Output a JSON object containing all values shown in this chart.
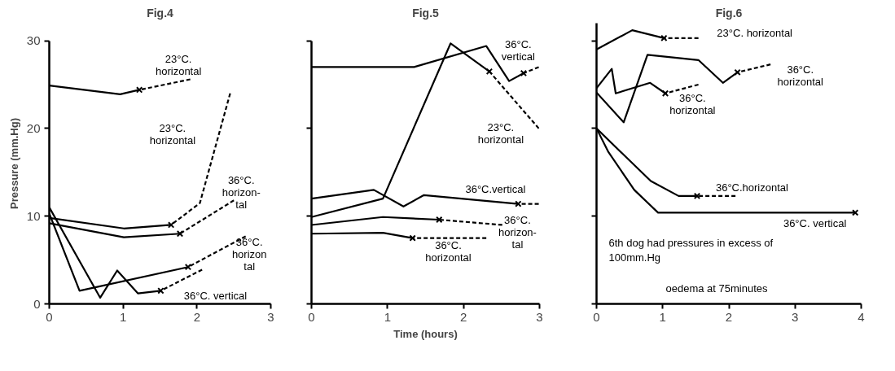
{
  "chart_data": [
    {
      "type": "line",
      "title": "Fig.4",
      "ylabel": "Pressure (mm.Hg)",
      "xlim": [
        0,
        3
      ],
      "xticks": [
        0,
        1,
        2,
        3
      ],
      "ylim": [
        0,
        30
      ],
      "yticks": [
        0,
        10,
        20,
        30
      ],
      "grid": false,
      "legend": false,
      "series": [
        {
          "color": "#000000",
          "line_style": "solid",
          "x": [
            0,
            0.96,
            1.22
          ],
          "values": [
            24.9,
            23.9,
            24.4
          ]
        },
        {
          "name": "23°C.\nhorizontal",
          "color": "#000000",
          "line_style": "dashed",
          "x": [
            1.22,
            1.91
          ],
          "values": [
            24.4,
            25.6
          ]
        },
        {
          "color": "#000000",
          "line_style": "solid",
          "x": [
            0,
            1.01,
            1.65
          ],
          "values": [
            9.8,
            8.6,
            9.0
          ]
        },
        {
          "name": "23°C.\nhorizontal",
          "color": "#000000",
          "line_style": "dashed",
          "x": [
            1.65,
            2.04,
            2.45
          ],
          "values": [
            9.0,
            11.5,
            24.0
          ]
        },
        {
          "color": "#000000",
          "line_style": "solid",
          "x": [
            0,
            1.01,
            1.77
          ],
          "values": [
            9.2,
            7.6,
            8.0
          ]
        },
        {
          "name": "36°C.\nhorizon-\ntal",
          "color": "#000000",
          "line_style": "dashed",
          "x": [
            1.77,
            2.5
          ],
          "values": [
            8.0,
            11.8
          ]
        },
        {
          "color": "#000000",
          "line_style": "solid",
          "x": [
            0,
            0.41,
            1.88
          ],
          "values": [
            10.3,
            1.5,
            4.2
          ]
        },
        {
          "name": "36°C.\nhorizon\ntal",
          "color": "#000000",
          "line_style": "dashed",
          "x": [
            1.88,
            2.66
          ],
          "values": [
            4.2,
            7.7
          ]
        },
        {
          "color": "#000000",
          "line_style": "solid",
          "x": [
            0,
            0.69,
            0.92,
            1.2,
            1.51
          ],
          "values": [
            11.0,
            0.7,
            3.8,
            1.2,
            1.5
          ]
        },
        {
          "name": "36°C. vertical",
          "color": "#000000",
          "line_style": "dashed",
          "x": [
            1.51,
            2.07
          ],
          "values": [
            1.5,
            3.9
          ]
        },
        {
          "type": "scatter",
          "marker": "cross",
          "color": "#000000",
          "x": [
            1.22,
            1.65,
            1.77,
            1.88,
            1.51
          ],
          "values": [
            24.4,
            9.0,
            8.0,
            4.2,
            1.5
          ]
        }
      ]
    },
    {
      "type": "line",
      "title": "Fig.5",
      "xlabel": "Time (hours)",
      "xlim": [
        0,
        3
      ],
      "xticks": [
        0,
        1,
        2,
        3
      ],
      "ylim": [
        0,
        30
      ],
      "yticks": [
        0,
        10,
        20,
        30
      ],
      "tick_labels": "x",
      "grid": false,
      "legend": false,
      "series": [
        {
          "color": "#000000",
          "line_style": "solid",
          "x": [
            0,
            1.35,
            2.3,
            2.6,
            2.79
          ],
          "values": [
            27.0,
            27.0,
            29.4,
            25.4,
            26.3
          ]
        },
        {
          "name": "36°C.\nvertical",
          "color": "#000000",
          "line_style": "dashed",
          "x": [
            2.79,
            2.99
          ],
          "values": [
            26.3,
            27.0
          ]
        },
        {
          "color": "#000000",
          "line_style": "solid",
          "x": [
            0,
            0.94,
            1.83,
            2.34
          ],
          "values": [
            9.9,
            12.0,
            29.7,
            26.5
          ]
        },
        {
          "name": "23°C.\nhorizontal",
          "color": "#000000",
          "line_style": "dashed",
          "x": [
            2.34,
            2.99
          ],
          "values": [
            26.5,
            20.0
          ]
        },
        {
          "color": "#000000",
          "line_style": "solid",
          "x": [
            0,
            0.82,
            1.21,
            1.48,
            2.72
          ],
          "values": [
            12.0,
            13.0,
            11.1,
            12.4,
            11.4
          ]
        },
        {
          "name": "36°C.vertical",
          "color": "#000000",
          "line_style": "dashed",
          "x": [
            2.72,
            2.99
          ],
          "values": [
            11.4,
            11.4
          ]
        },
        {
          "color": "#000000",
          "line_style": "solid",
          "x": [
            0,
            0.94,
            1.68
          ],
          "values": [
            9.0,
            9.9,
            9.6
          ]
        },
        {
          "name": "36°C.\nhorizon-\ntal",
          "color": "#000000",
          "line_style": "dashed",
          "x": [
            1.68,
            2.51
          ],
          "values": [
            9.6,
            9.0
          ]
        },
        {
          "color": "#000000",
          "line_style": "solid",
          "x": [
            0,
            0.94,
            1.33
          ],
          "values": [
            8.0,
            8.1,
            7.5
          ]
        },
        {
          "name": "36°C.\nhorizontal",
          "color": "#000000",
          "line_style": "dashed",
          "x": [
            1.33,
            2.3
          ],
          "values": [
            7.5,
            7.5
          ]
        },
        {
          "type": "scatter",
          "marker": "cross",
          "color": "#000000",
          "x": [
            2.79,
            2.34,
            2.72,
            1.68,
            1.33
          ],
          "values": [
            26.3,
            26.5,
            11.4,
            9.6,
            7.5
          ]
        }
      ]
    },
    {
      "type": "line",
      "title": "Fig.6",
      "xlim": [
        0,
        4
      ],
      "xticks": [
        0,
        1,
        2,
        3,
        4
      ],
      "ylim": [
        0,
        32
      ],
      "yticks": [
        0,
        10,
        20,
        30
      ],
      "tick_labels": "x",
      "grid": false,
      "legend": false,
      "series": [
        {
          "color": "#000000",
          "line_style": "solid",
          "x": [
            0,
            0.54,
            1.02
          ],
          "values": [
            29.0,
            31.2,
            30.3
          ]
        },
        {
          "name": "23°C. horizontal",
          "color": "#000000",
          "line_style": "dashed",
          "x": [
            1.02,
            1.54
          ],
          "values": [
            30.3,
            30.3
          ]
        },
        {
          "color": "#000000",
          "line_style": "solid",
          "x": [
            0,
            0.41,
            0.77,
            1.54,
            1.91,
            2.13
          ],
          "values": [
            24.1,
            20.7,
            28.4,
            27.8,
            25.2,
            26.4
          ]
        },
        {
          "name": "36°C.\nhorizontal",
          "color": "#000000",
          "line_style": "dashed",
          "x": [
            2.13,
            2.63
          ],
          "values": [
            26.4,
            27.3
          ]
        },
        {
          "color": "#000000",
          "line_style": "solid",
          "x": [
            0,
            0.23,
            0.29,
            0.81,
            1.04
          ],
          "values": [
            24.6,
            26.8,
            24.0,
            25.2,
            24.0
          ]
        },
        {
          "name": "36°C.\nhorizontal",
          "color": "#000000",
          "line_style": "dashed",
          "x": [
            1.04,
            1.54
          ],
          "values": [
            24.0,
            25.0
          ]
        },
        {
          "color": "#000000",
          "line_style": "solid",
          "x": [
            0,
            0.82,
            1.24,
            1.52
          ],
          "values": [
            20.0,
            14.0,
            12.3,
            12.3
          ]
        },
        {
          "name": "36°C.horizontal",
          "color": "#000000",
          "line_style": "dashed",
          "x": [
            1.52,
            2.1
          ],
          "values": [
            12.3,
            12.3
          ]
        },
        {
          "name": "36°C. vertical",
          "color": "#000000",
          "line_style": "solid",
          "x": [
            0,
            0.18,
            0.57,
            0.93,
            3.91
          ],
          "values": [
            20.0,
            17.3,
            13.0,
            10.4,
            10.4
          ]
        },
        {
          "type": "scatter",
          "marker": "cross",
          "color": "#000000",
          "x": [
            1.02,
            2.13,
            1.04,
            1.52,
            3.91
          ],
          "values": [
            30.3,
            26.4,
            24.0,
            12.3,
            10.4
          ]
        }
      ],
      "annotations": [
        "6th dog had pressures in excess of\n100mm.Hg",
        "oedema at 75minutes"
      ]
    }
  ]
}
